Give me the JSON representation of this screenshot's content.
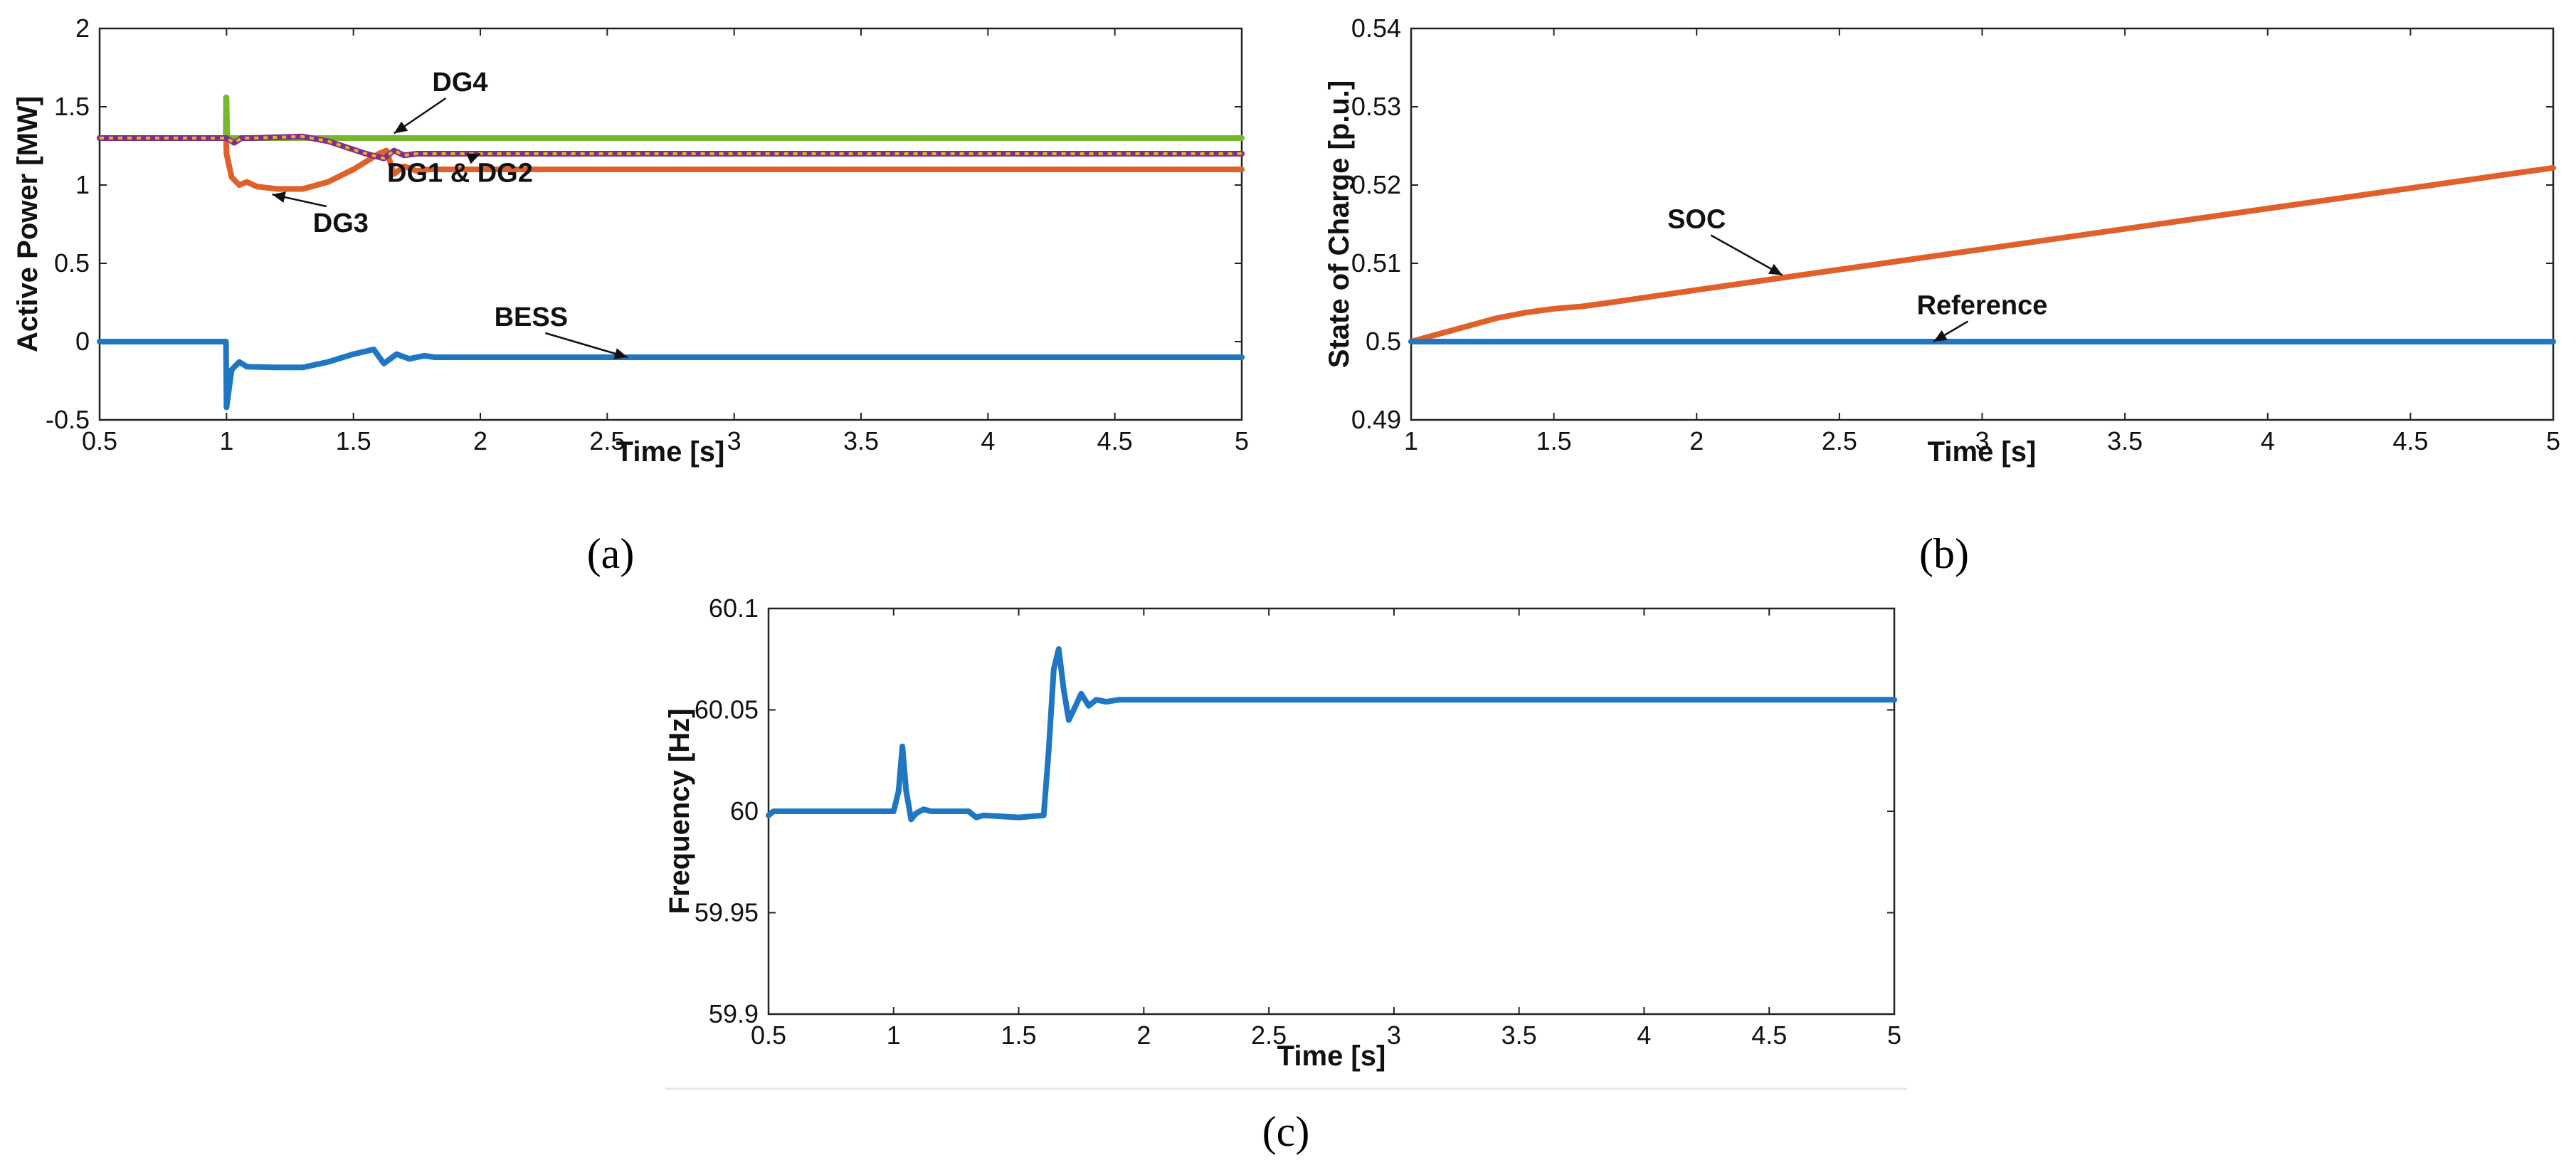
{
  "colors": {
    "blue": "#1f77c4",
    "orange": "#e0602a",
    "green": "#77b82f",
    "purple": "#7e2f8e",
    "yellow": "#edb120"
  },
  "chart_data": [
    {
      "id": "a",
      "type": "line",
      "caption": "(a)",
      "xlabel": "Time [s]",
      "ylabel": "Active Power [MW]",
      "xlim": [
        0.5,
        5
      ],
      "ylim": [
        -0.5,
        2
      ],
      "xticks": [
        0.5,
        1,
        1.5,
        2,
        2.5,
        3,
        3.5,
        4,
        4.5,
        5
      ],
      "yticks": [
        -0.5,
        0,
        0.5,
        1,
        1.5,
        2
      ],
      "ytick_labels": [
        "-0.5",
        "0",
        "0.5",
        "1",
        "1.5",
        "2"
      ],
      "series": [
        {
          "name": "DG4",
          "color": "green",
          "x": [
            0.5,
            0.997,
            0.998,
            1.0,
            1.003,
            1.05,
            1.3,
            1.6,
            5.0
          ],
          "y": [
            1.3,
            1.3,
            1.56,
            1.56,
            1.3,
            1.3,
            1.3,
            1.3,
            1.3
          ]
        },
        {
          "name": "DG3",
          "color": "orange",
          "x": [
            0.5,
            0.998,
            1.0,
            1.02,
            1.05,
            1.08,
            1.12,
            1.2,
            1.3,
            1.4,
            1.5,
            1.6,
            1.63,
            1.66,
            1.7,
            1.75,
            1.8,
            2.0,
            5.0
          ],
          "y": [
            1.3,
            1.3,
            1.2,
            1.05,
            1.0,
            1.02,
            0.99,
            0.975,
            0.975,
            1.02,
            1.1,
            1.2,
            1.22,
            1.07,
            1.12,
            1.09,
            1.1,
            1.1,
            1.1
          ]
        },
        {
          "name": "DG1 & DG2",
          "color": "purple",
          "dashed": "yellow",
          "x": [
            0.5,
            0.998,
            1.0,
            1.03,
            1.06,
            1.1,
            1.3,
            1.4,
            1.55,
            1.62,
            1.66,
            1.7,
            1.75,
            5.0
          ],
          "y": [
            1.3,
            1.3,
            1.3,
            1.27,
            1.3,
            1.3,
            1.31,
            1.28,
            1.2,
            1.17,
            1.22,
            1.19,
            1.2,
            1.2
          ]
        },
        {
          "name": "BESS",
          "color": "blue",
          "x": [
            0.5,
            0.998,
            1.0,
            1.02,
            1.05,
            1.08,
            1.2,
            1.3,
            1.4,
            1.5,
            1.58,
            1.62,
            1.67,
            1.72,
            1.78,
            1.82,
            5.0
          ],
          "y": [
            0.0,
            0.0,
            -0.42,
            -0.18,
            -0.13,
            -0.16,
            -0.165,
            -0.165,
            -0.13,
            -0.08,
            -0.05,
            -0.14,
            -0.08,
            -0.11,
            -0.09,
            -0.1,
            -0.1
          ]
        }
      ],
      "annotations": [
        {
          "text": "DG4",
          "tx": 1.92,
          "ty": 1.6,
          "ax": 1.66,
          "ay": 1.33
        },
        {
          "text": "DG1 & DG2",
          "tx": 1.92,
          "ty": 1.02,
          "ax": 2.0,
          "ay": 1.2
        },
        {
          "text": "DG3",
          "tx": 1.45,
          "ty": 0.7,
          "ax": 1.18,
          "ay": 0.94
        },
        {
          "text": "BESS",
          "tx": 2.2,
          "ty": 0.1,
          "ax": 2.58,
          "ay": -0.1
        }
      ]
    },
    {
      "id": "b",
      "type": "line",
      "caption": "(b)",
      "xlabel": "Time [s]",
      "ylabel": "State of Charge [p.u.]",
      "xlim": [
        1,
        5
      ],
      "ylim": [
        0.49,
        0.54
      ],
      "xticks": [
        1,
        1.5,
        2,
        2.5,
        3,
        3.5,
        4,
        4.5,
        5
      ],
      "yticks": [
        0.49,
        0.5,
        0.51,
        0.52,
        0.53,
        0.54
      ],
      "ytick_labels": [
        "0.49",
        "0.5",
        "0.51",
        "0.52",
        "0.53",
        "0.54"
      ],
      "series": [
        {
          "name": "SOC",
          "color": "orange",
          "x": [
            1.0,
            1.1,
            1.2,
            1.3,
            1.4,
            1.5,
            1.6,
            1.7,
            2.0,
            3.0,
            4.0,
            5.0
          ],
          "y": [
            0.5,
            0.501,
            0.502,
            0.503,
            0.5037,
            0.5042,
            0.5045,
            0.505,
            0.5066,
            0.5118,
            0.517,
            0.5222
          ]
        },
        {
          "name": "Reference",
          "color": "blue",
          "x": [
            1.0,
            5.0
          ],
          "y": [
            0.5,
            0.5
          ]
        }
      ],
      "annotations": [
        {
          "text": "SOC",
          "tx": 2.0,
          "ty": 0.5145,
          "ax": 2.3,
          "ay": 0.5085
        },
        {
          "text": "Reference",
          "tx": 3.0,
          "ty": 0.5035,
          "ax": 2.83,
          "ay": 0.5
        }
      ]
    },
    {
      "id": "c",
      "type": "line",
      "caption": "(c)",
      "xlabel": "Time [s]",
      "ylabel": "Frequency [Hz]",
      "xlim": [
        0.5,
        5
      ],
      "ylim": [
        59.9,
        60.1
      ],
      "xticks": [
        0.5,
        1,
        1.5,
        2,
        2.5,
        3,
        3.5,
        4,
        4.5,
        5
      ],
      "yticks": [
        59.9,
        59.95,
        60,
        60.05,
        60.1
      ],
      "ytick_labels": [
        "59.9",
        "59.95",
        "60",
        "60.05",
        "60.1"
      ],
      "series": [
        {
          "name": "Frequency",
          "color": "blue",
          "x": [
            0.5,
            0.52,
            0.6,
            0.9,
            1.0,
            1.02,
            1.035,
            1.05,
            1.07,
            1.09,
            1.12,
            1.15,
            1.3,
            1.33,
            1.36,
            1.5,
            1.6,
            1.62,
            1.64,
            1.66,
            1.68,
            1.7,
            1.72,
            1.75,
            1.78,
            1.81,
            1.85,
            1.9,
            2.0,
            5.0
          ],
          "y": [
            59.998,
            60.0,
            60.0,
            60.0,
            60.0,
            60.01,
            60.032,
            60.01,
            59.996,
            59.999,
            60.001,
            60.0,
            60.0,
            59.997,
            59.998,
            59.997,
            59.998,
            60.03,
            60.07,
            60.08,
            60.06,
            60.045,
            60.05,
            60.058,
            60.052,
            60.055,
            60.054,
            60.055,
            60.055,
            60.055
          ]
        }
      ],
      "annotations": []
    }
  ]
}
